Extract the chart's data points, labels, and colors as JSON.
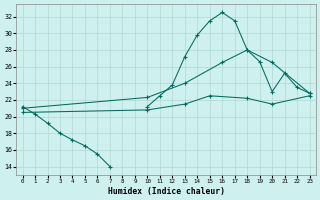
{
  "xlabel": "Humidex (Indice chaleur)",
  "background_color": "#cef0ee",
  "grid_color": "#b2d8d4",
  "line_color": "#006b5e",
  "xlim": [
    -0.5,
    23.5
  ],
  "ylim": [
    13.0,
    33.5
  ],
  "xticks": [
    0,
    1,
    2,
    3,
    4,
    5,
    6,
    7,
    8,
    9,
    10,
    11,
    12,
    13,
    14,
    15,
    16,
    17,
    18,
    19,
    20,
    21,
    22,
    23
  ],
  "yticks": [
    14,
    16,
    18,
    20,
    22,
    24,
    26,
    28,
    30,
    32
  ],
  "curve1_x": [
    0,
    1,
    2,
    3,
    4,
    5,
    6,
    7,
    8,
    9,
    10,
    11,
    12,
    13,
    14,
    15,
    16,
    17,
    18,
    19,
    20,
    21,
    22,
    23
  ],
  "curve1_y": [
    21.2,
    20.3,
    19.2,
    18.0,
    17.2,
    16.5,
    15.5,
    14.0,
    null,
    null,
    21.2,
    22.5,
    23.8,
    27.2,
    29.8,
    31.5,
    32.5,
    31.5,
    28.0,
    26.6,
    23.0,
    25.2,
    23.5,
    22.8
  ],
  "curve2_x": [
    0,
    10,
    13,
    16,
    18,
    20,
    23
  ],
  "curve2_y": [
    21.0,
    22.3,
    24.0,
    26.5,
    28.0,
    26.5,
    22.8
  ],
  "curve3_x": [
    0,
    10,
    13,
    15,
    18,
    20,
    23
  ],
  "curve3_y": [
    20.5,
    20.8,
    21.5,
    22.5,
    22.2,
    21.5,
    22.5
  ]
}
